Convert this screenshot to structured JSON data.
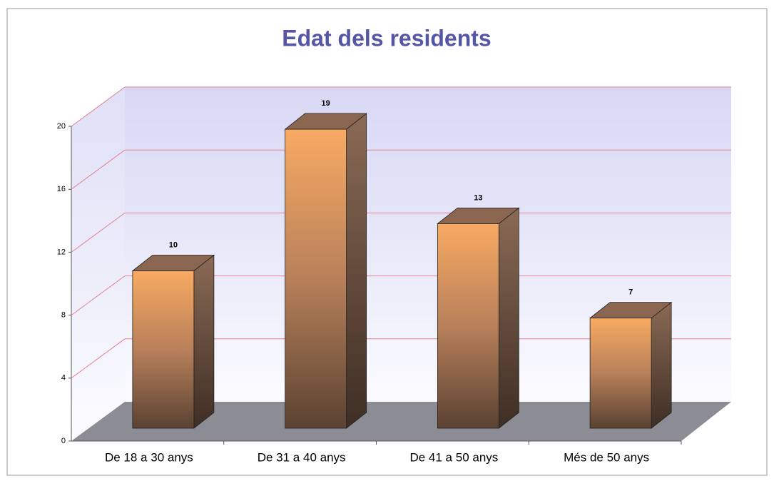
{
  "chart_data": {
    "type": "bar3d",
    "title": "Edat dels residents",
    "categories": [
      "De 18 a 30 anys",
      "De 31 a 40 anys",
      "De 41 a 50 anys",
      "Més de 50 anys"
    ],
    "values": [
      10,
      19,
      13,
      7
    ],
    "ylim": [
      0,
      20
    ],
    "yticks": [
      0,
      4,
      8,
      12,
      16,
      20
    ],
    "grid": true
  }
}
